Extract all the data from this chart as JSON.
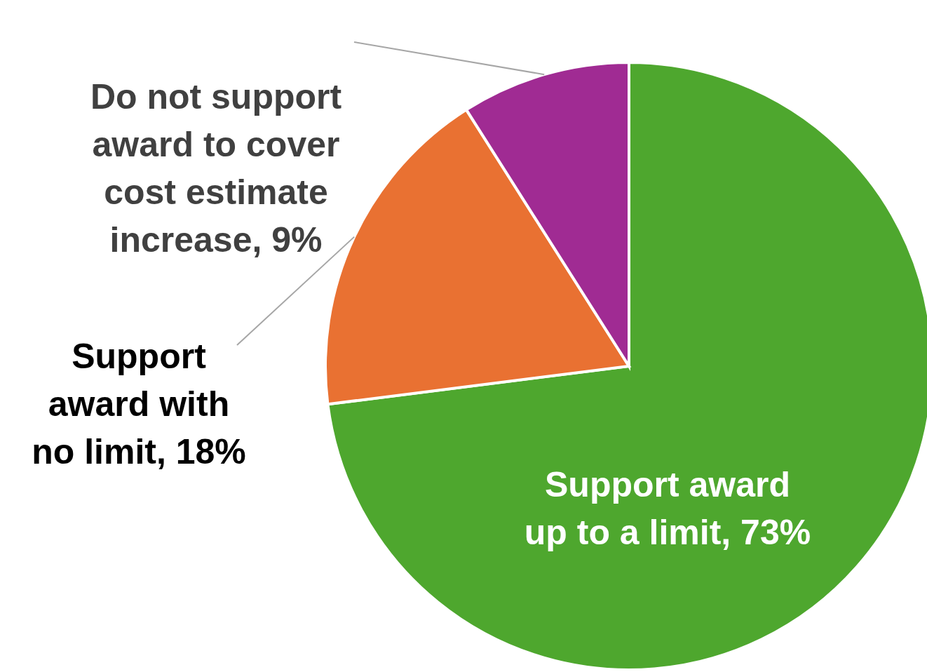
{
  "chart_data": {
    "type": "pie",
    "categories": [
      "Support award up to a limit",
      "Support award with no limit",
      "Do not support award to cover cost estimate increase"
    ],
    "values": [
      73,
      18,
      9
    ],
    "value_labels": [
      "73%",
      "18%",
      "9%"
    ],
    "colors": [
      "#4ea72e",
      "#e97132",
      "#a02b93"
    ]
  }
}
